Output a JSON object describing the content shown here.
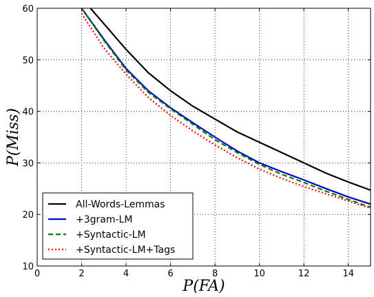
{
  "chart_data": {
    "type": "line",
    "title": "",
    "xlabel": "P(FA)",
    "ylabel": "P(Miss)",
    "xlim": [
      0,
      15
    ],
    "ylim": [
      10,
      60
    ],
    "x_ticks": [
      0,
      2,
      4,
      6,
      8,
      10,
      12,
      14
    ],
    "y_ticks": [
      10,
      20,
      30,
      40,
      50,
      60
    ],
    "grid": true,
    "legend_position": "bottom-left",
    "series": [
      {
        "name": "All-Words-Lemmas",
        "color": "#000000",
        "dash": "solid",
        "x": [
          2.4,
          3,
          4,
          5,
          6,
          7,
          8,
          9,
          10,
          11,
          12,
          13,
          14,
          15
        ],
        "y": [
          60,
          57,
          52,
          47.5,
          44,
          41,
          38.5,
          36,
          34,
          32,
          30,
          28,
          26.3,
          24.7
        ]
      },
      {
        "name": "+3gram-LM",
        "color": "#0000cc",
        "dash": "solid",
        "x": [
          2.0,
          3,
          4,
          5,
          6,
          7,
          8,
          9,
          10,
          11,
          12,
          13,
          14,
          15
        ],
        "y": [
          60,
          54,
          48.3,
          44,
          40.7,
          37.8,
          35,
          32.3,
          30,
          28.3,
          26.7,
          25,
          23.4,
          22
        ]
      },
      {
        "name": "+Syntactic-LM",
        "color": "#008000",
        "dash": "dashed",
        "x": [
          2.0,
          3,
          4,
          5,
          6,
          7,
          8,
          9,
          10,
          11,
          12,
          13,
          14,
          15
        ],
        "y": [
          60,
          53.8,
          48,
          43.7,
          40.5,
          37.5,
          34.5,
          32,
          29.7,
          27.8,
          26.2,
          24.5,
          22.9,
          21.4
        ]
      },
      {
        "name": "+Syntactic-LM+Tags",
        "color": "#ff0000",
        "dash": "dotted",
        "x": [
          2.0,
          3,
          4,
          5,
          6,
          7,
          8,
          9,
          10,
          11,
          12,
          13,
          14,
          15
        ],
        "y": [
          59,
          52.3,
          47.2,
          42.7,
          39.2,
          36.2,
          33.5,
          31,
          28.8,
          27,
          25.4,
          24,
          22.6,
          21.2
        ]
      }
    ]
  }
}
